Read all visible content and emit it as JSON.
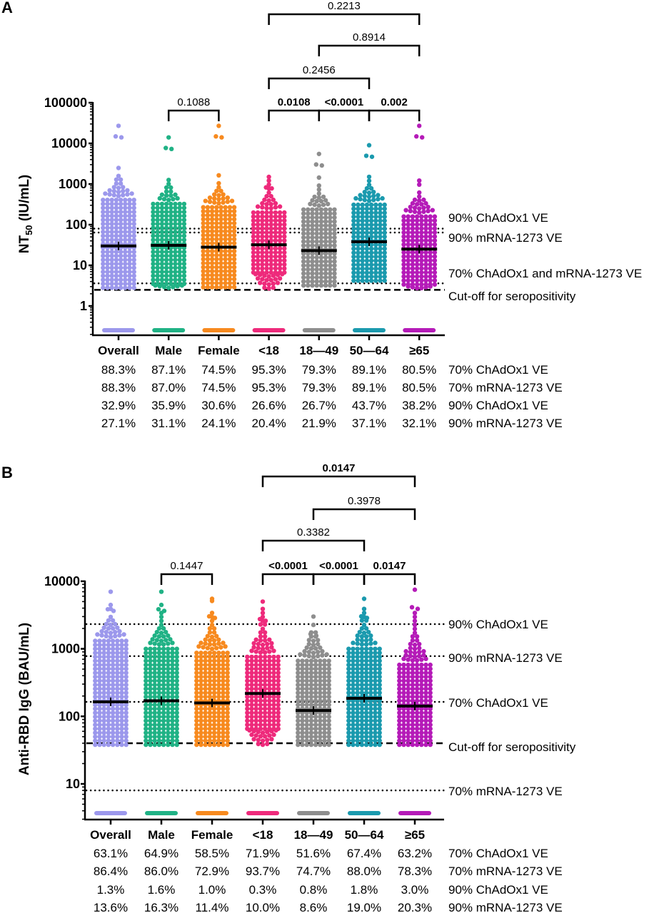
{
  "chart_data": [
    {
      "panel": "A",
      "type": "scatter",
      "ylabel_main": "NT",
      "ylabel_sub": "50",
      "ylabel_rest": " (IU/mL)",
      "yscale": "log",
      "ylim": [
        0.2,
        100000
      ],
      "yticks": [
        "1",
        "10",
        "100",
        "1000",
        "10000",
        "100000"
      ],
      "categories": [
        "Overall",
        "Male",
        "Female",
        "<18",
        "18—49",
        "50—64",
        "≥65"
      ],
      "groups": [
        {
          "name": "Overall",
          "color": "#9c98ec",
          "median": 30,
          "min": 2.8,
          "max": 27000,
          "below_detection": true
        },
        {
          "name": "Male",
          "color": "#20b285",
          "median": 31,
          "min": 2.8,
          "max": 14000,
          "below_detection": true
        },
        {
          "name": "Female",
          "color": "#f78a1f",
          "median": 28,
          "min": 2.9,
          "max": 27000,
          "below_detection": true
        },
        {
          "name": "<18",
          "color": "#ee2a7b",
          "median": 32,
          "min": 2.7,
          "max": 1500,
          "below_detection": true
        },
        {
          "name": "18—49",
          "color": "#8e8e8e",
          "median": 23,
          "min": 3.2,
          "max": 5500,
          "below_detection": true
        },
        {
          "name": "50—64",
          "color": "#1b9aae",
          "median": 38,
          "min": 4.2,
          "max": 9000,
          "below_detection": true
        },
        {
          "name": "≥65",
          "color": "#b51bb8",
          "median": 25,
          "min": 2.7,
          "max": 27000,
          "below_detection": true
        }
      ],
      "reference_lines": [
        {
          "label": "90% ChAdOx1 VE",
          "value": 80,
          "style": "dotted"
        },
        {
          "label": "90% mRNA-1273 VE",
          "value": 64,
          "style": "dotted"
        },
        {
          "label": "70% ChAdOx1 and mRNA-1273 VE",
          "value": 3.6,
          "style": "dotted"
        },
        {
          "label": "Cut-off for seropositivity",
          "value": 2.5,
          "style": "dashed"
        }
      ],
      "comparisons": [
        {
          "from": "Male",
          "to": "Female",
          "p": "0.1088",
          "bold": false,
          "level": 0
        },
        {
          "from": "<18",
          "to": "18—49",
          "p": "0.0108",
          "bold": true,
          "level": 0
        },
        {
          "from": "18—49",
          "to": "50—64",
          "p": "<0.0001",
          "bold": true,
          "level": 0
        },
        {
          "from": "50—64",
          "to": "≥65",
          "p": "0.002",
          "bold": true,
          "level": 0
        },
        {
          "from": "<18",
          "to": "50—64",
          "p": "0.2456",
          "bold": false,
          "level": 1
        },
        {
          "from": "18—49",
          "to": "≥65",
          "p": "0.8914",
          "bold": false,
          "level": 2
        },
        {
          "from": "<18",
          "to": "≥65",
          "p": "0.2213",
          "bold": false,
          "level": 3
        }
      ],
      "table": [
        {
          "label": "70% ChAdOx1 VE",
          "values": [
            "88.3%",
            "87.1%",
            "74.5%",
            "95.3%",
            "79.3%",
            "89.1%",
            "80.5%"
          ]
        },
        {
          "label": "70% mRNA-1273 VE",
          "values": [
            "88.3%",
            "87.0%",
            "74.5%",
            "95.3%",
            "79.3%",
            "89.1%",
            "80.5%"
          ]
        },
        {
          "label": "90% ChAdOx1 VE",
          "values": [
            "32.9%",
            "35.9%",
            "30.6%",
            "26.6%",
            "26.7%",
            "43.7%",
            "38.2%"
          ]
        },
        {
          "label": "90% mRNA-1273 VE",
          "values": [
            "27.1%",
            "31.1%",
            "24.1%",
            "20.4%",
            "21.9%",
            "37.1%",
            "32.1%"
          ]
        }
      ]
    },
    {
      "panel": "B",
      "type": "scatter",
      "ylabel_main": "Anti-RBD IgG (BAU/mL)",
      "ylabel_sub": "",
      "ylabel_rest": "",
      "yscale": "log",
      "ylim": [
        3,
        10000
      ],
      "yticks": [
        "10",
        "100",
        "1000",
        "10000"
      ],
      "categories": [
        "Overall",
        "Male",
        "Female",
        "<18",
        "18—49",
        "50—64",
        "≥65"
      ],
      "groups": [
        {
          "name": "Overall",
          "color": "#9c98ec",
          "median": 164,
          "min": 38,
          "max": 7000,
          "below_detection": true
        },
        {
          "name": "Male",
          "color": "#20b285",
          "median": 170,
          "min": 38,
          "max": 7000,
          "below_detection": true
        },
        {
          "name": "Female",
          "color": "#f78a1f",
          "median": 158,
          "min": 38,
          "max": 5500,
          "below_detection": true
        },
        {
          "name": "<18",
          "color": "#ee2a7b",
          "median": 218,
          "min": 38,
          "max": 5000,
          "below_detection": true
        },
        {
          "name": "18—49",
          "color": "#8e8e8e",
          "median": 122,
          "min": 38,
          "max": 3000,
          "below_detection": true
        },
        {
          "name": "50—64",
          "color": "#1b9aae",
          "median": 185,
          "min": 38,
          "max": 5500,
          "below_detection": true
        },
        {
          "name": "≥65",
          "color": "#b51bb8",
          "median": 142,
          "min": 38,
          "max": 7500,
          "below_detection": true
        }
      ],
      "reference_lines": [
        {
          "label": "90% ChAdOx1 VE",
          "value": 2320,
          "style": "dotted"
        },
        {
          "label": "90% mRNA-1273 VE",
          "value": 780,
          "style": "dotted"
        },
        {
          "label": "70% ChAdOx1 VE",
          "value": 164,
          "style": "dotted"
        },
        {
          "label": "Cut-off for seropositivity",
          "value": 40,
          "style": "dashed"
        },
        {
          "label": "70% mRNA-1273 VE",
          "value": 8,
          "style": "dotted"
        }
      ],
      "comparisons": [
        {
          "from": "Male",
          "to": "Female",
          "p": "0.1447",
          "bold": false,
          "level": 0
        },
        {
          "from": "<18",
          "to": "18—49",
          "p": "<0.0001",
          "bold": true,
          "level": 0
        },
        {
          "from": "18—49",
          "to": "50—64",
          "p": "<0.0001",
          "bold": true,
          "level": 0
        },
        {
          "from": "50—64",
          "to": "≥65",
          "p": "0.0147",
          "bold": true,
          "level": 0
        },
        {
          "from": "<18",
          "to": "50—64",
          "p": "0.3382",
          "bold": false,
          "level": 1
        },
        {
          "from": "18—49",
          "to": "≥65",
          "p": "0.3978",
          "bold": false,
          "level": 2
        },
        {
          "from": "<18",
          "to": "≥65",
          "p": "0.0147",
          "bold": true,
          "level": 3
        }
      ],
      "table": [
        {
          "label": "70% ChAdOx1 VE",
          "values": [
            "63.1%",
            "64.9%",
            "58.5%",
            "71.9%",
            "51.6%",
            "67.4%",
            "63.2%"
          ]
        },
        {
          "label": "70% mRNA-1273 VE",
          "values": [
            "86.4%",
            "86.0%",
            "72.9%",
            "93.7%",
            "74.7%",
            "88.0%",
            "78.3%"
          ]
        },
        {
          "label": "90% ChAdOx1 VE",
          "values": [
            "1.3%",
            "1.6%",
            "1.0%",
            "0.3%",
            "0.8%",
            "1.8%",
            "3.0%"
          ]
        },
        {
          "label": "90% mRNA-1273 VE",
          "values": [
            "13.6%",
            "16.3%",
            "11.4%",
            "10.0%",
            "8.6%",
            "19.0%",
            "20.3%"
          ]
        }
      ]
    }
  ]
}
